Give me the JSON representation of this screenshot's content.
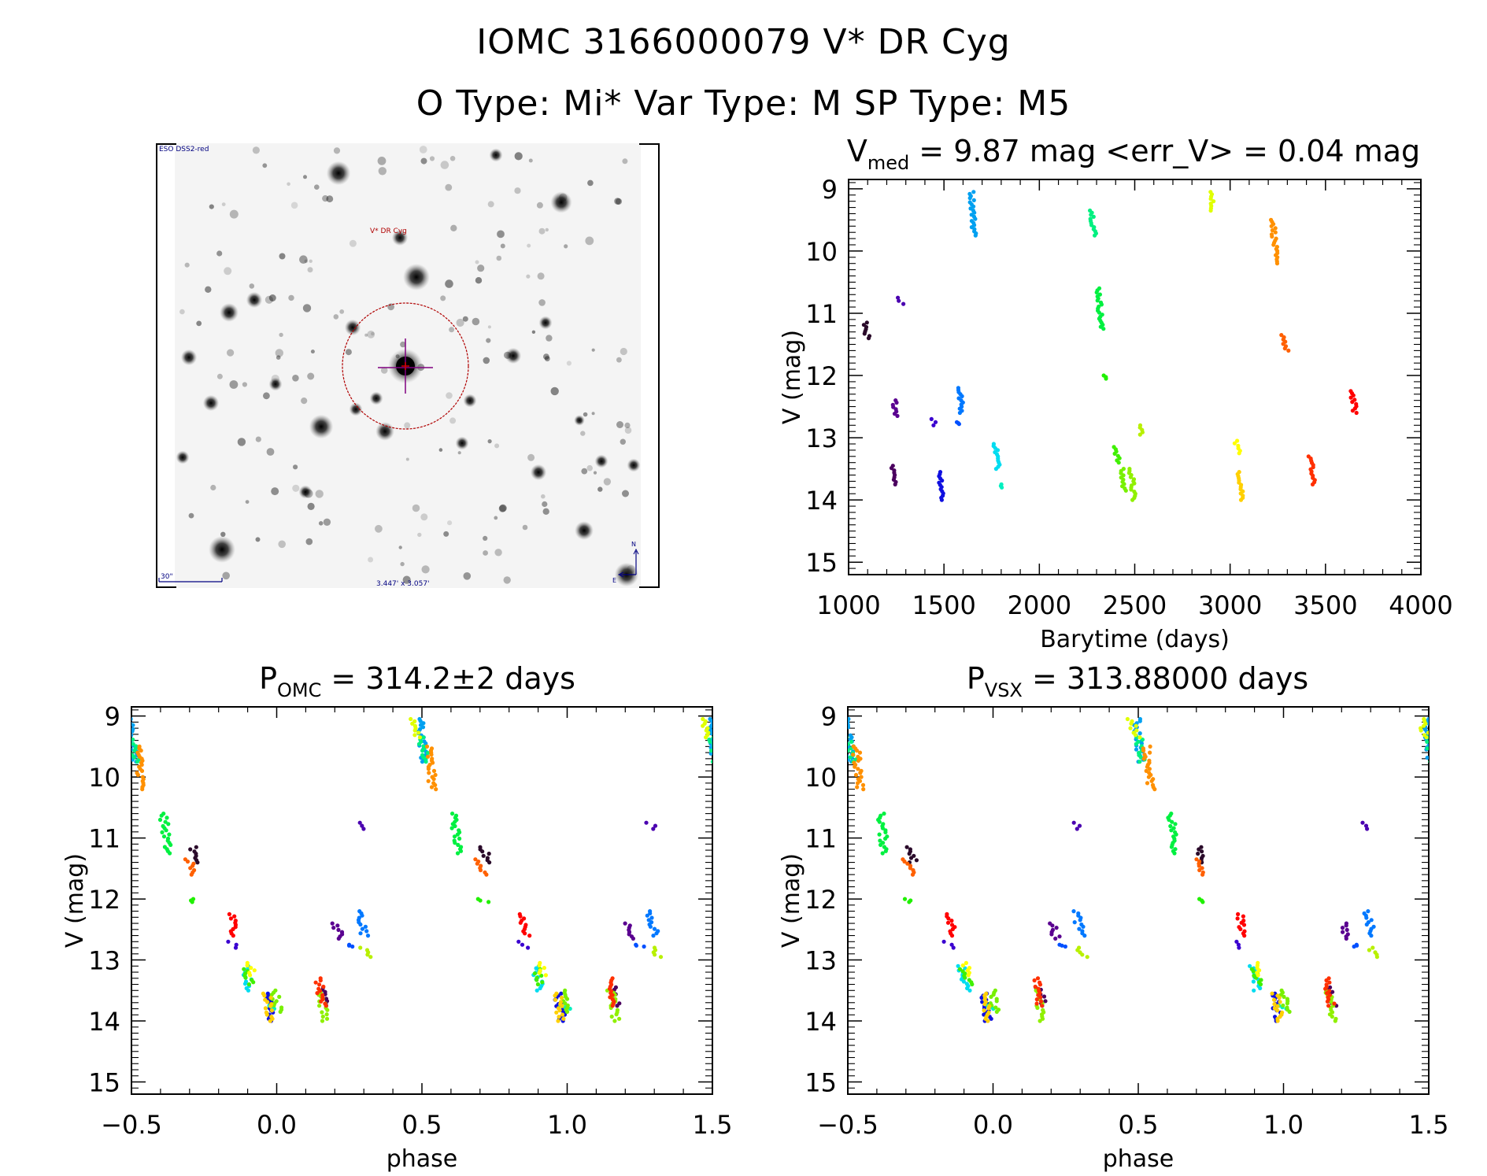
{
  "header": {
    "title_line1": "IOMC 3166000079    V* DR Cyg",
    "title_line2": "O Type: Mi*   Var Type: M   SP Type: M5"
  },
  "sky_image": {
    "survey_label": "ESO DSS2-red",
    "target_label": "V* DR Cyg",
    "scale_label": "30\"",
    "fov_label": "3.447' x 3.057'",
    "north_label": "N",
    "east_label": "E",
    "label_color": "#000080",
    "target_color": "#b00000",
    "circle_color": "#b00000",
    "crosshair_color": "#800080"
  },
  "chart_data": [
    {
      "id": "lightcurve",
      "type": "scatter",
      "title_main": "V",
      "title_sub": "med",
      "title_rest": " = 9.87 mag <err_V> = 0.04 mag",
      "xlabel": "Barytime (days)",
      "ylabel": "V (mag)",
      "xlim": [
        1000,
        4000
      ],
      "ylim": [
        15.2,
        8.85
      ],
      "y_inverted": true,
      "xticks": [
        1000,
        1500,
        2000,
        2500,
        3000,
        3500,
        4000
      ],
      "xtick_labels": [
        "1000",
        "1500",
        "2000",
        "2500",
        "3000",
        "3500",
        "4000"
      ],
      "yticks": [
        9,
        10,
        11,
        12,
        13,
        14,
        15
      ],
      "ytick_labels": [
        "9",
        "10",
        "11",
        "12",
        "13",
        "14",
        "15"
      ],
      "grid": false,
      "segments": [
        {
          "t": 1085,
          "v": [
            11.15,
            11.4
          ],
          "color": "#2a0a2a"
        },
        {
          "t": 1225,
          "v": [
            13.45,
            13.75
          ],
          "color": "#4b005f"
        },
        {
          "t": 1240,
          "v": [
            12.4,
            12.65
          ],
          "color": "#5a0090"
        },
        {
          "t": 1265,
          "v": [
            10.75,
            10.85
          ],
          "color": "#4a00b0"
        },
        {
          "t": 1440,
          "v": [
            12.7,
            12.8
          ],
          "color": "#3a00d0"
        },
        {
          "t": 1480,
          "v": [
            13.55,
            14.0
          ],
          "color": "#1010e0"
        },
        {
          "t": 1565,
          "v": [
            12.75,
            12.78
          ],
          "color": "#0050ff"
        },
        {
          "t": 1580,
          "v": [
            12.2,
            12.6
          ],
          "color": "#0078ff"
        },
        {
          "t": 1645,
          "v": [
            9.05,
            9.75
          ],
          "color": "#00a0f0"
        },
        {
          "t": 1770,
          "v": [
            13.1,
            13.5
          ],
          "color": "#00dcf0"
        },
        {
          "t": 1800,
          "v": [
            13.75,
            13.8
          ],
          "color": "#00f0c0"
        },
        {
          "t": 2275,
          "v": [
            9.35,
            9.75
          ],
          "color": "#00f080"
        },
        {
          "t": 2310,
          "v": [
            10.6,
            11.25
          ],
          "color": "#00f040"
        },
        {
          "t": 2340,
          "v": [
            12.0,
            12.05
          ],
          "color": "#20f000"
        },
        {
          "t": 2400,
          "v": [
            13.15,
            13.4
          ],
          "color": "#40f000"
        },
        {
          "t": 2430,
          "v": [
            13.5,
            13.85
          ],
          "color": "#78f000"
        },
        {
          "t": 2480,
          "v": [
            13.5,
            14.0
          ],
          "color": "#90f000"
        },
        {
          "t": 2525,
          "v": [
            12.8,
            12.95
          ],
          "color": "#b8f000"
        },
        {
          "t": 2895,
          "v": [
            9.05,
            9.35
          ],
          "color": "#e0ff00"
        },
        {
          "t": 3030,
          "v": [
            13.05,
            13.25
          ],
          "color": "#ffff00"
        },
        {
          "t": 3050,
          "v": [
            13.55,
            14.0
          ],
          "color": "#ffd000"
        },
        {
          "t": 3225,
          "v": [
            9.5,
            10.2
          ],
          "color": "#ff9000"
        },
        {
          "t": 3280,
          "v": [
            11.35,
            11.6
          ],
          "color": "#ff6000"
        },
        {
          "t": 3420,
          "v": [
            13.3,
            13.75
          ],
          "color": "#ff3000"
        },
        {
          "t": 3640,
          "v": [
            12.25,
            12.6
          ],
          "color": "#ff0000"
        }
      ]
    },
    {
      "id": "phase_omc",
      "type": "scatter",
      "title_main": "P",
      "title_sub": "OMC",
      "title_rest": " = 314.2±2 days",
      "period": 314.2,
      "epoch": 1490,
      "xlabel": "phase",
      "ylabel": "V (mag)",
      "xlim": [
        -0.5,
        1.5
      ],
      "ylim": [
        15.2,
        8.85
      ],
      "y_inverted": true,
      "xticks": [
        -0.5,
        0.0,
        0.5,
        1.0,
        1.5
      ],
      "xtick_labels": [
        "−0.5",
        "0.0",
        "0.5",
        "1.0",
        "1.5"
      ],
      "yticks": [
        9,
        10,
        11,
        12,
        13,
        14,
        15
      ],
      "ytick_labels": [
        "9",
        "10",
        "11",
        "12",
        "13",
        "14",
        "15"
      ],
      "grid": false
    },
    {
      "id": "phase_vsx",
      "type": "scatter",
      "title_main": "P",
      "title_sub": "VSX",
      "title_rest": " = 313.88000 days",
      "period": 313.88,
      "epoch": 1490,
      "xlabel": "phase",
      "ylabel": "V (mag)",
      "xlim": [
        -0.5,
        1.5
      ],
      "ylim": [
        15.2,
        8.85
      ],
      "y_inverted": true,
      "xticks": [
        -0.5,
        0.0,
        0.5,
        1.0,
        1.5
      ],
      "xtick_labels": [
        "−0.5",
        "0.0",
        "0.5",
        "1.0",
        "1.5"
      ],
      "yticks": [
        9,
        10,
        11,
        12,
        13,
        14,
        15
      ],
      "ytick_labels": [
        "9",
        "10",
        "11",
        "12",
        "13",
        "14",
        "15"
      ],
      "grid": false
    }
  ]
}
